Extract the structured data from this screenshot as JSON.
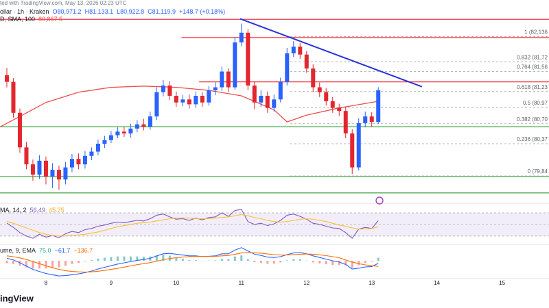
{
  "header": {
    "source": "ted with TradingView.com, May 13, 2026 02:23 UTC",
    "symbol": "ollar · 1h · Kraken",
    "ohlc": [
      "O80,971.2",
      "H81,133.1",
      "L80,922.8",
      "C81,119.9",
      "+148.7 (+0.18%)"
    ],
    "sma_label": "D, SMA, 100",
    "sma_value": "80,867.5"
  },
  "chart_data": [
    {
      "type": "candlestick",
      "x": [
        7.4,
        7.5,
        7.6,
        7.7,
        7.8,
        7.9,
        8,
        8.1,
        8.2,
        8.3,
        8.4,
        8.5,
        8.6,
        8.7,
        8.8,
        8.9,
        9,
        9.1,
        9.2,
        9.3,
        9.4,
        9.5,
        9.6,
        9.7,
        9.8,
        9.9,
        10,
        10.1,
        10.2,
        10.3,
        10.4,
        10.5,
        10.6,
        10.7,
        10.8,
        10.9,
        11,
        11.1,
        11.2,
        11.3,
        11.4,
        11.5,
        11.6,
        11.7,
        11.8,
        11.9,
        12,
        12.1,
        12.2,
        12.3,
        12.4,
        12.5,
        12.6,
        12.7,
        12.8,
        12.9,
        13,
        13.1
      ],
      "open": [
        81500,
        81390,
        80880,
        80310,
        80030,
        79860,
        80090,
        79830,
        79940,
        79780,
        79980,
        80120,
        80030,
        80170,
        80240,
        80370,
        80430,
        80510,
        80570,
        80540,
        80620,
        80690,
        80650,
        80820,
        81220,
        81330,
        81160,
        81050,
        81100,
        81020,
        81160,
        81050,
        81250,
        81300,
        81560,
        81300,
        82040,
        82200,
        81330,
        81050,
        81160,
        80960,
        81100,
        81390,
        81860,
        81970,
        81840,
        81610,
        81300,
        81220,
        81070,
        80960,
        80910,
        80540,
        79980,
        80710,
        80820,
        80730
      ],
      "high": [
        81620,
        81450,
        80950,
        80400,
        80110,
        80180,
        80160,
        80050,
        80010,
        80070,
        80200,
        80210,
        80250,
        80310,
        80440,
        80500,
        80580,
        80640,
        80650,
        80700,
        80760,
        80780,
        80900,
        81300,
        81420,
        81400,
        81230,
        81170,
        81180,
        81230,
        81220,
        81320,
        81380,
        81640,
        81610,
        82130,
        82350,
        82260,
        81400,
        81250,
        81230,
        81180,
        81460,
        81950,
        82060,
        82030,
        81900,
        81680,
        81380,
        81290,
        81140,
        81030,
        80980,
        80610,
        80790,
        80900,
        80890,
        81300
      ],
      "low": [
        81300,
        80800,
        80220,
        79950,
        79760,
        79790,
        79700,
        79640,
        79610,
        79700,
        79900,
        79950,
        79960,
        80100,
        80180,
        80300,
        80380,
        80460,
        80480,
        80470,
        80560,
        80590,
        80600,
        80760,
        81150,
        81090,
        80980,
        80990,
        80950,
        80960,
        80980,
        81000,
        81170,
        81240,
        81220,
        81260,
        81980,
        81250,
        80940,
        80980,
        80880,
        80900,
        81050,
        81330,
        81800,
        81770,
        81540,
        81220,
        81140,
        81000,
        80880,
        80830,
        80460,
        79870,
        79930,
        80640,
        80650,
        80700
      ],
      "close": [
        81390,
        80880,
        80310,
        80030,
        79860,
        80090,
        79830,
        79940,
        79780,
        79980,
        80120,
        80030,
        80170,
        80240,
        80370,
        80430,
        80510,
        80570,
        80540,
        80620,
        80690,
        80650,
        80820,
        81220,
        81330,
        81160,
        81050,
        81100,
        81020,
        81160,
        81050,
        81250,
        81300,
        81560,
        81300,
        82040,
        82200,
        81330,
        81050,
        81160,
        80960,
        81100,
        81390,
        81860,
        81970,
        81840,
        81610,
        81300,
        81220,
        81070,
        80960,
        80910,
        80540,
        79980,
        80710,
        80820,
        80730,
        81250
      ],
      "up_color": "#2962ff",
      "down_color": "#e3262f",
      "xlim": [
        7.295,
        15.72
      ],
      "ylim": [
        79445,
        82536
      ],
      "xticks": [
        8,
        9,
        10,
        11,
        12,
        13,
        14,
        15
      ],
      "sma": {
        "color": "#f04b4b",
        "x": [
          7.3,
          7.6,
          8,
          8.5,
          9,
          9.5,
          10,
          10.5,
          11,
          11.5,
          11.7,
          12,
          12.5,
          13.1
        ],
        "values": [
          80650,
          80820,
          81050,
          81220,
          81300,
          81320,
          81300,
          81250,
          81160,
          80930,
          80730,
          80840,
          80960,
          81070
        ]
      },
      "hlines": [
        {
          "value": 82420,
          "color": "#f23645"
        },
        {
          "value": 82120,
          "color": "#f23645",
          "from": 10.08
        },
        {
          "value": 81390,
          "color": "#f23645",
          "from": 10.35
        },
        {
          "value": 80650,
          "color": "#4caf50"
        },
        {
          "value": 79830,
          "color": "#4caf50"
        },
        {
          "value": 79560,
          "color": "#4caf50"
        }
      ],
      "fib": {
        "from": 11.75,
        "color": "#9e9e9e",
        "levels": [
          {
            "value": 82136,
            "label": "1 (82,136"
          },
          {
            "value": 81720,
            "label": "0.832 (81,72"
          },
          {
            "value": 81560,
            "label": "0.764 (81,56"
          },
          {
            "value": 81230,
            "label": "0.618 (81,23"
          },
          {
            "value": 80970,
            "label": "0.5 (80,97"
          },
          {
            "value": 80700,
            "label": "0.382 (80,70"
          },
          {
            "value": 80370,
            "label": "0.236 (80,37"
          },
          {
            "value": 79840,
            "label": "0 (79,84"
          }
        ]
      },
      "trendline": {
        "color": "#2632d9",
        "x": [
          10.98,
          13.77
        ],
        "values": [
          82430,
          81310
        ]
      }
    },
    {
      "type": "rsi",
      "title": "MA, 14, 2",
      "readouts": [
        {
          "text": "56.49",
          "color": "#7e57c2"
        },
        {
          "text": "45.75",
          "color": "#f9a825"
        }
      ],
      "ylim": [
        18,
        83
      ],
      "levels": [
        30,
        50,
        70
      ],
      "band_color": "#7e57c2",
      "series": [
        {
          "color": "#7e57c2",
          "values": [
            52,
            45,
            36,
            30,
            26,
            33,
            28,
            31,
            27,
            34,
            38,
            36,
            41,
            43,
            47,
            49,
            52,
            54,
            53,
            55,
            57,
            56,
            60,
            66,
            68,
            63,
            59,
            60,
            57,
            61,
            58,
            62,
            63,
            70,
            64,
            74,
            76,
            55,
            50,
            52,
            48,
            51,
            57,
            66,
            68,
            64,
            59,
            52,
            50,
            47,
            44,
            43,
            36,
            26,
            42,
            45,
            43,
            56.49
          ]
        },
        {
          "color": "#fbc02d",
          "values": [
            55,
            52,
            48,
            44,
            40,
            36,
            33,
            31,
            30,
            30,
            31,
            32,
            33,
            35,
            37,
            40,
            43,
            46,
            48,
            50,
            52,
            53,
            54,
            56,
            58,
            60,
            61,
            61,
            61,
            60,
            60,
            60,
            61,
            62,
            63,
            65,
            67,
            65,
            62,
            60,
            57,
            55,
            54,
            55,
            57,
            59,
            60,
            59,
            57,
            55,
            52,
            49,
            47,
            44,
            42,
            42,
            43,
            45.75
          ]
        }
      ]
    },
    {
      "type": "macd",
      "title": "ume, 9, EMA",
      "readouts": [
        {
          "text": "75.0",
          "color": "#26a69a"
        },
        {
          "text": "−61.7",
          "color": "#2962ff"
        },
        {
          "text": "−136.7",
          "color": "#ff6d00"
        }
      ],
      "ylim": [
        -400,
        350
      ],
      "histogram": {
        "colors": [
          "#80cbc4",
          "#f5a3a3"
        ],
        "values": [
          -60,
          -80,
          -120,
          -160,
          -190,
          -190,
          -190,
          -170,
          -160,
          -120,
          -80,
          -50,
          -15,
          20,
          55,
          75,
          90,
          105,
          105,
          105,
          105,
          100,
          105,
          130,
          145,
          125,
          85,
          50,
          20,
          15,
          -5,
          5,
          12,
          50,
          40,
          105,
          130,
          40,
          -35,
          -55,
          -75,
          -70,
          -40,
          10,
          40,
          40,
          5,
          -40,
          -65,
          -85,
          -100,
          -105,
          -110,
          -170,
          -110,
          -50,
          -20,
          75
        ]
      },
      "series": [
        {
          "color": "#2962ff",
          "values": [
            60,
            20,
            -50,
            -130,
            -210,
            -260,
            -310,
            -340,
            -370,
            -360,
            -340,
            -320,
            -290,
            -250,
            -200,
            -160,
            -120,
            -80,
            -50,
            -20,
            10,
            30,
            60,
            120,
            170,
            180,
            160,
            140,
            120,
            120,
            100,
            110,
            120,
            170,
            170,
            260,
            320,
            240,
            160,
            130,
            90,
            80,
            100,
            150,
            190,
            200,
            170,
            120,
            80,
            40,
            0,
            -30,
            -90,
            -200,
            -180,
            -150,
            -140,
            -61.7
          ]
        },
        {
          "color": "#ff6d00",
          "values": [
            120,
            100,
            70,
            30,
            -20,
            -70,
            -120,
            -170,
            -210,
            -240,
            -260,
            -270,
            -275,
            -270,
            -255,
            -235,
            -210,
            -185,
            -155,
            -125,
            -95,
            -70,
            -45,
            -10,
            25,
            55,
            75,
            90,
            100,
            105,
            105,
            105,
            108,
            120,
            130,
            155,
            190,
            200,
            195,
            185,
            165,
            150,
            140,
            140,
            150,
            160,
            165,
            160,
            145,
            125,
            100,
            75,
            20,
            -30,
            -70,
            -100,
            -120,
            -136.7
          ]
        }
      ]
    }
  ],
  "footer": {
    "brand": "ingView"
  }
}
